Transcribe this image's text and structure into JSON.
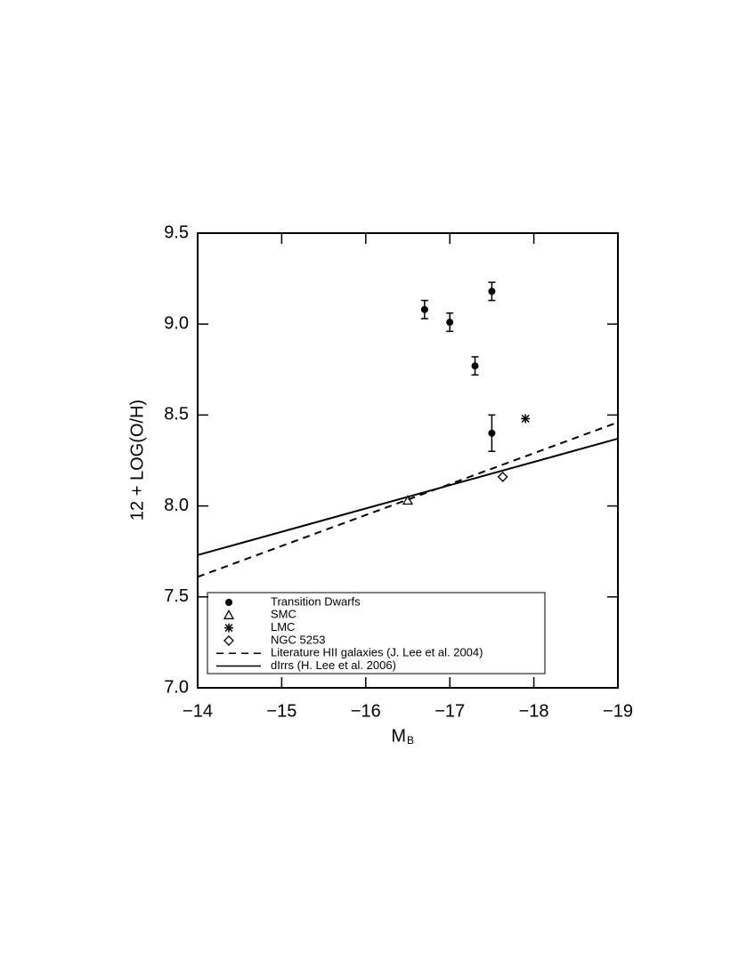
{
  "chart_data": {
    "type": "scatter",
    "xlabel": {
      "text": "M",
      "subscript": "B"
    },
    "ylabel": "12 + LOG(O/H)",
    "xlim": [
      -14,
      -19
    ],
    "ylim": [
      7.0,
      9.5
    ],
    "xticks": [
      {
        "value": -14,
        "label": "−14"
      },
      {
        "value": -15,
        "label": "−15"
      },
      {
        "value": -16,
        "label": "−16"
      },
      {
        "value": -17,
        "label": "−17"
      },
      {
        "value": -18,
        "label": "−18"
      },
      {
        "value": -19,
        "label": "−19"
      }
    ],
    "yticks": [
      {
        "value": 7.0,
        "label": "7.0"
      },
      7.5,
      {
        "value": 8.0,
        "label": "8.0"
      },
      8.5,
      {
        "value": 9.0,
        "label": "9.0"
      },
      9.5
    ],
    "legend": "bottom-left",
    "color": "#000000",
    "series": [
      {
        "name": "Transition Dwarfs",
        "marker": "filled-circle",
        "x": [
          -16.7,
          -17.0,
          -17.3,
          -17.5,
          -17.5
        ],
        "values": [
          9.08,
          9.01,
          8.77,
          9.18,
          8.4
        ],
        "errors": [
          0.05,
          0.05,
          0.05,
          0.05,
          0.1
        ]
      },
      {
        "name": "SMC",
        "marker": "triangle",
        "x": [
          -16.5
        ],
        "values": [
          8.03
        ]
      },
      {
        "name": "LMC",
        "marker": "asterisk",
        "x": [
          -17.9
        ],
        "values": [
          8.48
        ]
      },
      {
        "name": "NGC 5253",
        "marker": "diamond",
        "x": [
          -17.63
        ],
        "values": [
          8.16
        ]
      },
      {
        "name": "Literature HII galaxies (J. Lee et al. 2004)",
        "line": "dashed",
        "x": [
          -14,
          -19
        ],
        "values": [
          7.61,
          8.46
        ]
      },
      {
        "name": "dIrrs (H. Lee et al. 2006)",
        "line": "solid",
        "x": [
          -14,
          -19
        ],
        "values": [
          7.73,
          8.37
        ]
      }
    ]
  }
}
